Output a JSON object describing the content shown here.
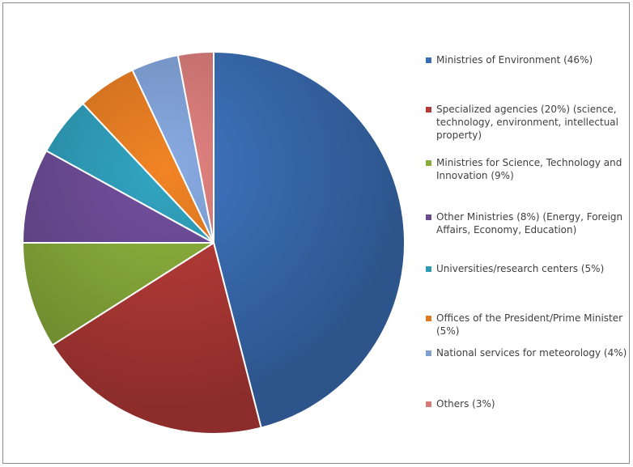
{
  "chart_data": {
    "type": "pie",
    "title": "",
    "start_angle_deg": 0,
    "direction": "clockwise",
    "legend_placement": "right",
    "slices": [
      {
        "label": "Ministries of Environment (46%)",
        "value": 46,
        "color": "#3a6db4"
      },
      {
        "label": "Specialized agencies (20%) (science, technology, environment, intellectual property)",
        "value": 20,
        "color": "#b33a37"
      },
      {
        "label": "Ministries for Science, Technology and Innovation (9%)",
        "value": 9,
        "color": "#88ab3a"
      },
      {
        "label": "Other Ministries (8%) (Energy, Foreign Affairs, Economy, Education)",
        "value": 8,
        "color": "#6b4b94"
      },
      {
        "label": "Universities/research centers (5%)",
        "value": 5,
        "color": "#2e9ab5"
      },
      {
        "label": "Offices of the President/Prime Minister (5%)",
        "value": 5,
        "color": "#e07a22"
      },
      {
        "label": "National services for meteorology (4%)",
        "value": 4,
        "color": "#7f9fd3"
      },
      {
        "label": "Others (3%)",
        "value": 3,
        "color": "#d47a78"
      }
    ]
  }
}
